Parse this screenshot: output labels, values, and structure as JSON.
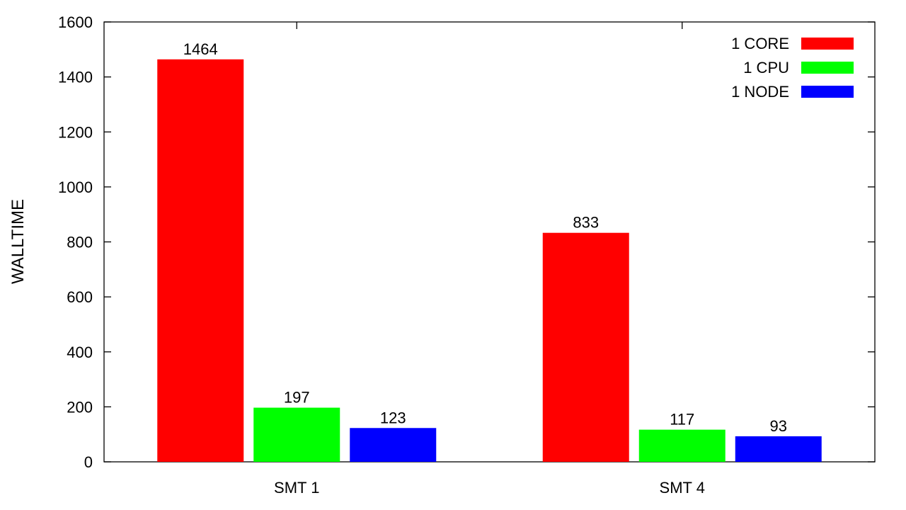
{
  "chart_data": {
    "type": "bar",
    "title": "",
    "xlabel": "",
    "ylabel": "WALLTIME",
    "categories": [
      "SMT 1",
      "SMT 4"
    ],
    "series": [
      {
        "name": "1 CORE",
        "color": "#ff0000",
        "values": [
          1464,
          833
        ]
      },
      {
        "name": "1 CPU",
        "color": "#00ff00",
        "values": [
          197,
          117
        ]
      },
      {
        "name": "1 NODE",
        "color": "#0000ff",
        "values": [
          123,
          93
        ]
      }
    ],
    "ylim": [
      0,
      1600
    ],
    "yticks": [
      0,
      200,
      400,
      600,
      800,
      1000,
      1200,
      1400,
      1600
    ],
    "grid": false,
    "legend_position": "top-right",
    "data_labels": true
  }
}
